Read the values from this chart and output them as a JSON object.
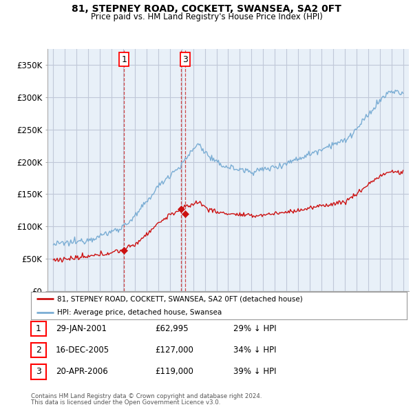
{
  "title": "81, STEPNEY ROAD, COCKETT, SWANSEA, SA2 0FT",
  "subtitle": "Price paid vs. HM Land Registry's House Price Index (HPI)",
  "hpi_color": "#7aadd4",
  "price_color": "#cc1111",
  "dashed_color": "#cc3333",
  "background_color": "#ffffff",
  "chart_bg_color": "#e8f0f8",
  "grid_color": "#c0c8d8",
  "ylim": [
    0,
    375000
  ],
  "xlim": [
    1994.5,
    2025.5
  ],
  "yticks": [
    0,
    50000,
    100000,
    150000,
    200000,
    250000,
    300000,
    350000
  ],
  "ytick_labels": [
    "£0",
    "£50K",
    "£100K",
    "£150K",
    "£200K",
    "£250K",
    "£300K",
    "£350K"
  ],
  "transactions": [
    {
      "num": 1,
      "date_label": "29-JAN-2001",
      "year": 2001.08,
      "price": 62995,
      "pct": "29%",
      "direction": "↓",
      "show_box": true
    },
    {
      "num": 2,
      "date_label": "16-DEC-2005",
      "year": 2005.96,
      "price": 127000,
      "pct": "34%",
      "direction": "↓",
      "show_box": false
    },
    {
      "num": 3,
      "date_label": "20-APR-2006",
      "year": 2006.3,
      "price": 119000,
      "pct": "39%",
      "direction": "↓",
      "show_box": true
    }
  ],
  "legend_label_price": "81, STEPNEY ROAD, COCKETT, SWANSEA, SA2 0FT (detached house)",
  "legend_label_hpi": "HPI: Average price, detached house, Swansea",
  "footer1": "Contains HM Land Registry data © Crown copyright and database right 2024.",
  "footer2": "This data is licensed under the Open Government Licence v3.0."
}
